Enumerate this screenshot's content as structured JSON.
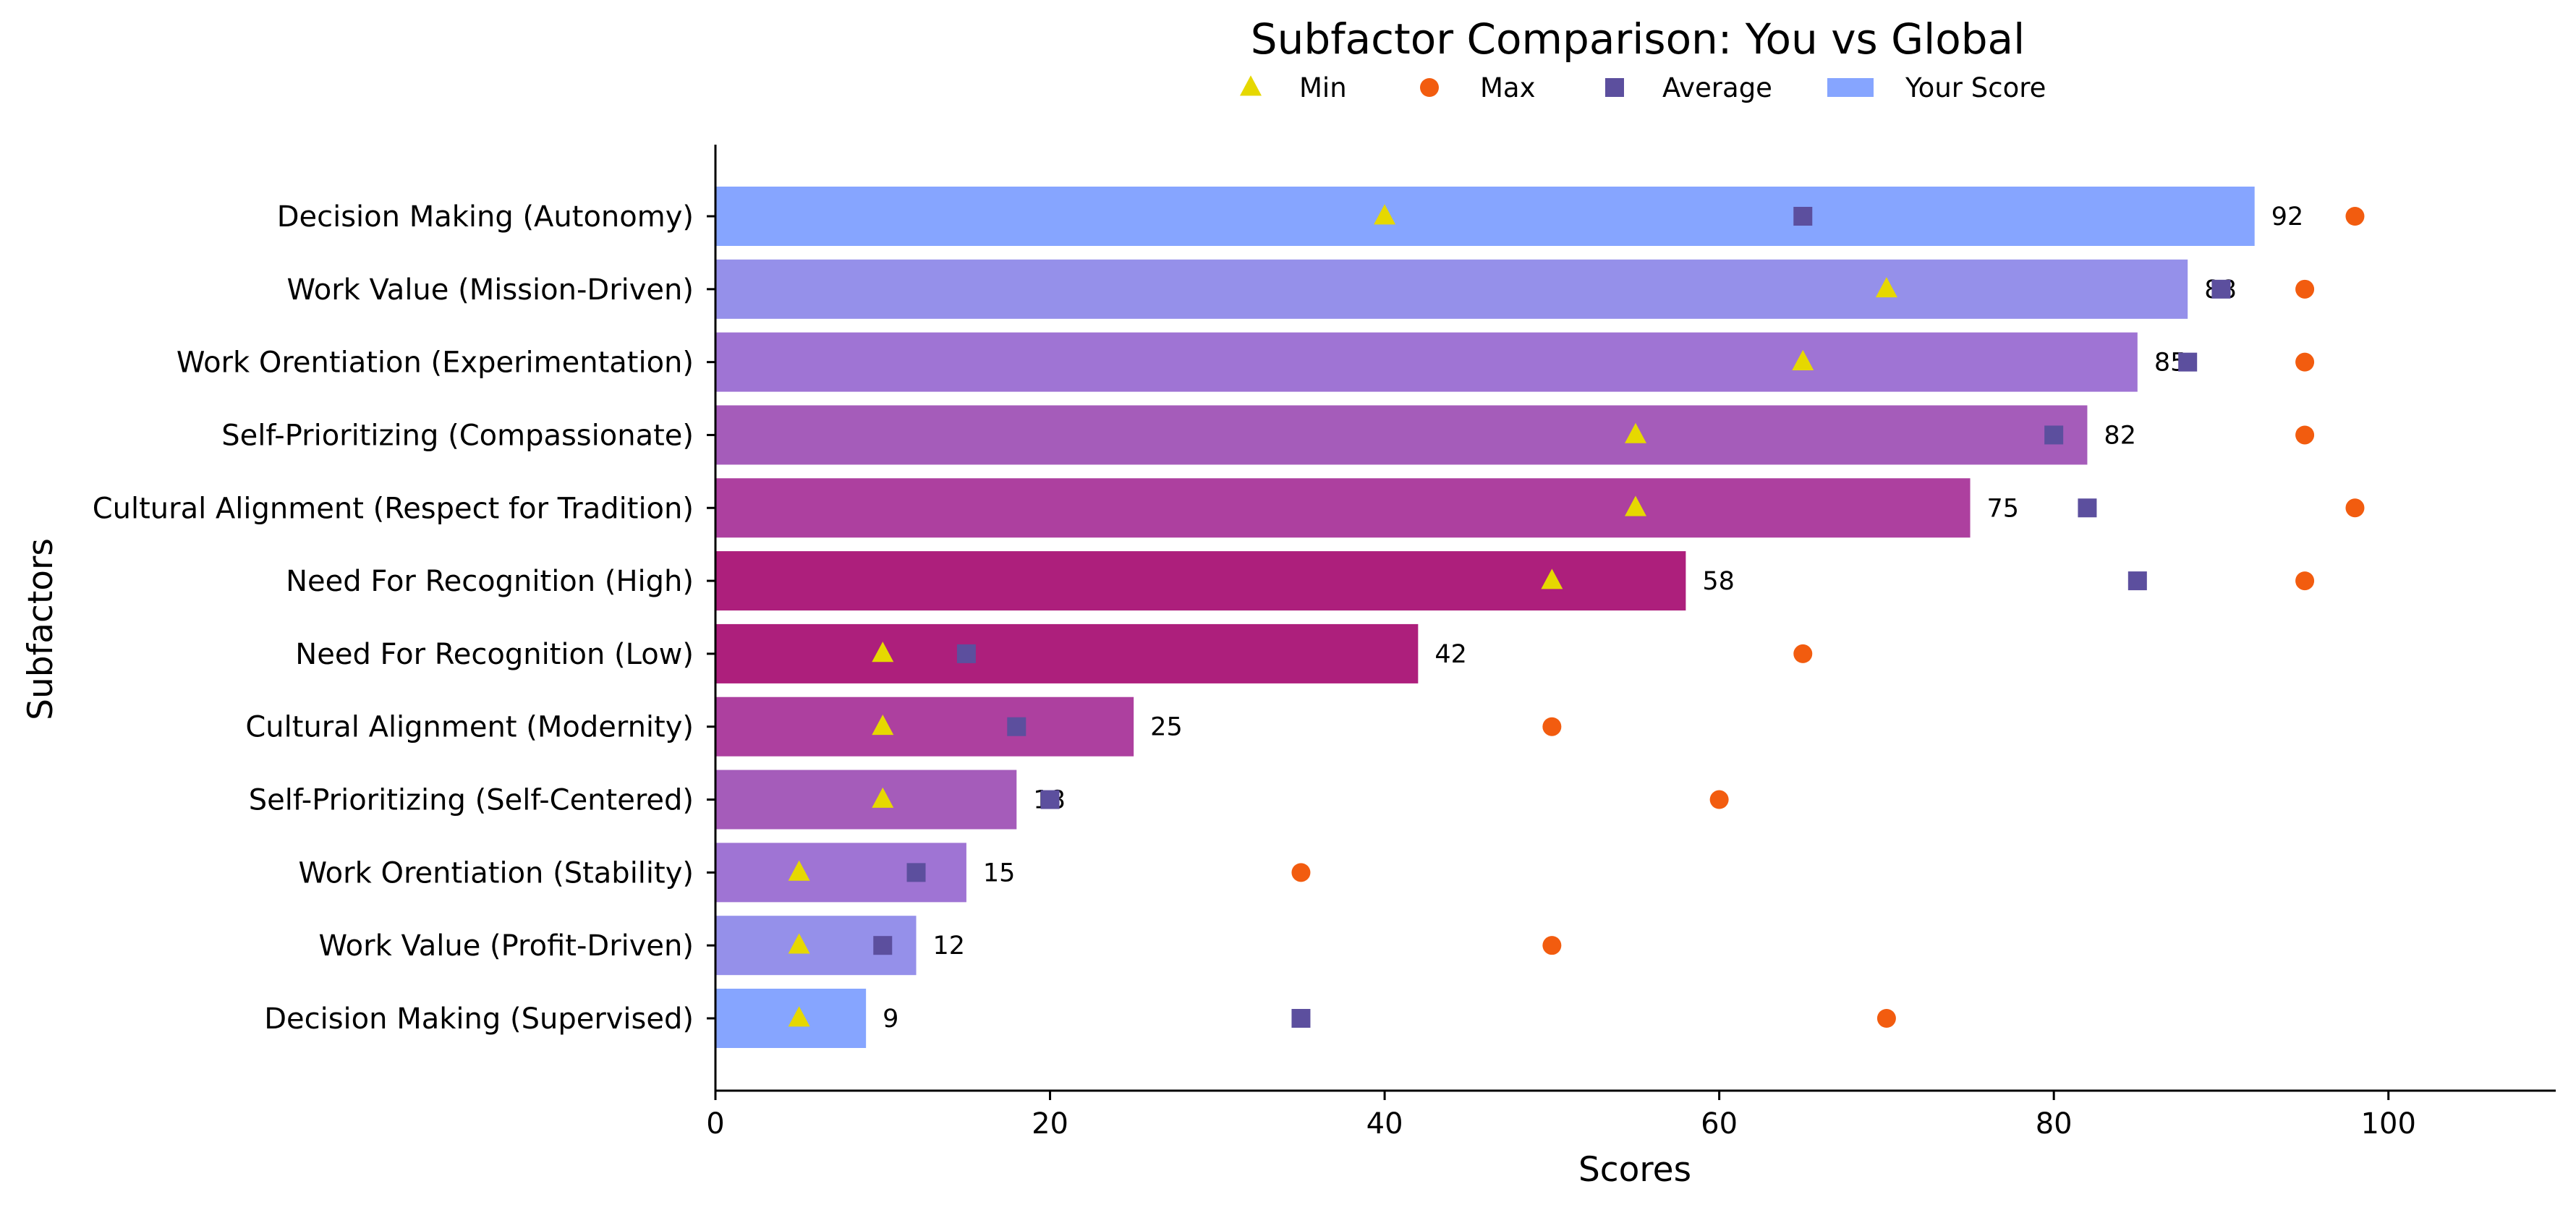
{
  "chart_data": {
    "type": "bar",
    "orientation": "horizontal",
    "title": "Subfactor Comparison: You vs Global",
    "xlabel": "Scores",
    "ylabel": "Subfactors",
    "xlim": [
      0,
      110
    ],
    "xticks": [
      0,
      20,
      40,
      60,
      80,
      100
    ],
    "grid": false,
    "legend_position": "top-center",
    "legend": [
      {
        "name": "Min",
        "marker": "triangle",
        "color": "#e6d800"
      },
      {
        "name": "Max",
        "marker": "circle",
        "color": "#f25c0f"
      },
      {
        "name": "Average",
        "marker": "square",
        "color": "#5c4f9e"
      },
      {
        "name": "Your Score",
        "marker": "bar",
        "color": "#86a5ff"
      }
    ],
    "categories": [
      "Decision Making (Autonomy)",
      "Work Value (Mission-Driven)",
      "Work Orentiation (Experimentation)",
      "Self-Prioritizing (Compassionate)",
      "Cultural Alignment (Respect for Tradition)",
      "Need For Recognition (High)",
      "Need For Recognition (Low)",
      "Cultural Alignment (Modernity)",
      "Self-Prioritizing (Self-Centered)",
      "Work Orentiation (Stability)",
      "Work Value (Profit-Driven)",
      "Decision Making (Supervised)"
    ],
    "bar_colors": [
      "#86a5ff",
      "#9590ea",
      "#9f74d4",
      "#a55cba",
      "#ad409f",
      "#ad1f7c",
      "#ad1f7c",
      "#ad409f",
      "#a55cba",
      "#9f74d4",
      "#9590ea",
      "#86a5ff"
    ],
    "series": [
      {
        "name": "Your Score",
        "values": [
          92,
          88,
          85,
          82,
          75,
          58,
          42,
          25,
          18,
          15,
          12,
          9
        ]
      },
      {
        "name": "Min",
        "values": [
          40,
          70,
          65,
          55,
          55,
          50,
          10,
          10,
          10,
          5,
          5,
          5
        ]
      },
      {
        "name": "Max",
        "values": [
          98,
          95,
          95,
          95,
          98,
          95,
          65,
          50,
          60,
          35,
          50,
          70
        ]
      },
      {
        "name": "Average",
        "values": [
          65,
          90,
          88,
          80,
          82,
          85,
          15,
          18,
          20,
          12,
          10,
          35
        ]
      }
    ]
  }
}
